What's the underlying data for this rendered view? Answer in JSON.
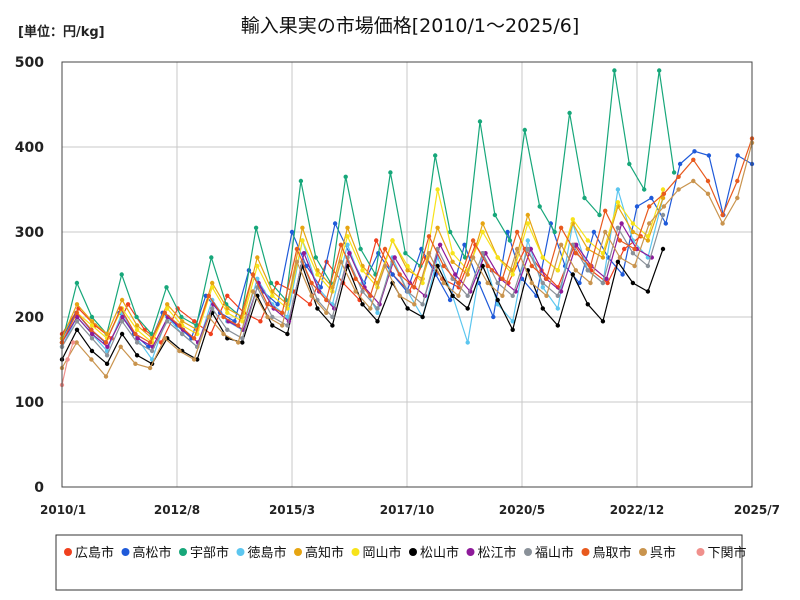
{
  "chart_data": {
    "type": "line",
    "title": "輸入果実の市場価格[2010/1～2025/6]",
    "unit_label": "[単位：円/kg]",
    "xlabel": "",
    "ylabel": "",
    "ylim": [
      0,
      500
    ],
    "y_ticks": [
      "0",
      "100",
      "200",
      "300",
      "400",
      "500"
    ],
    "y_tick_values": [
      0,
      100,
      200,
      300,
      400,
      500
    ],
    "x_range": [
      2010.0,
      2025.5
    ],
    "x_ticks": [
      "2010/1",
      "2012/8",
      "2015/3",
      "2017/10",
      "2020/5",
      "2022/12",
      "2025/7"
    ],
    "x_tick_values": [
      2010.0,
      2012.583,
      2015.167,
      2017.75,
      2020.333,
      2022.917,
      2025.5
    ],
    "grid": true,
    "legend_position": "bottom",
    "series": [
      {
        "name": "広島市",
        "color": "#f0401e",
        "x_start": 2010.0,
        "x_end": 2023.0,
        "values": [
          180,
          210,
          190,
          175,
          215,
          185,
          170,
          210,
          195,
          180,
          225,
          205,
          195,
          240,
          230,
          215,
          265,
          240,
          220,
          290,
          250,
          230,
          270,
          245,
          235,
          285,
          255,
          240,
          280,
          255,
          235,
          285,
          255,
          240,
          280,
          295
        ]
      },
      {
        "name": "高松市",
        "color": "#1f5ad9",
        "x_start": 2010.0,
        "x_end": 2025.5,
        "values": [
          175,
          205,
          185,
          170,
          205,
          180,
          165,
          205,
          190,
          175,
          225,
          205,
          195,
          255,
          230,
          215,
          300,
          260,
          235,
          310,
          275,
          240,
          275,
          250,
          230,
          280,
          250,
          220,
          285,
          240,
          200,
          300,
          245,
          225,
          310,
          260,
          240,
          300,
          270,
          250,
          330,
          340,
          310,
          380,
          395,
          390,
          320,
          390,
          380
        ]
      },
      {
        "name": "宇部市",
        "color": "#17a77a",
        "x_start": 2010.0,
        "x_end": 2023.75,
        "values": [
          170,
          240,
          200,
          180,
          250,
          200,
          180,
          235,
          200,
          190,
          270,
          215,
          200,
          305,
          240,
          220,
          360,
          270,
          240,
          365,
          280,
          250,
          370,
          275,
          260,
          390,
          300,
          270,
          430,
          320,
          290,
          420,
          330,
          300,
          440,
          340,
          320,
          490,
          380,
          350,
          490,
          370
        ]
      },
      {
        "name": "徳島市",
        "color": "#5cc6ef",
        "x_start": 2010.0,
        "x_end": 2023.5,
        "values": [
          165,
          200,
          180,
          160,
          205,
          175,
          150,
          200,
          180,
          165,
          220,
          195,
          185,
          245,
          215,
          200,
          290,
          235,
          215,
          285,
          240,
          205,
          270,
          230,
          200,
          270,
          225,
          170,
          275,
          215,
          195,
          290,
          235,
          210,
          310,
          255,
          240,
          350,
          290,
          270,
          340
        ]
      },
      {
        "name": "高知市",
        "color": "#e6a512",
        "x_start": 2010.0,
        "x_end": 2023.5,
        "values": [
          175,
          215,
          195,
          180,
          220,
          190,
          175,
          215,
          195,
          185,
          240,
          210,
          200,
          270,
          230,
          215,
          305,
          255,
          235,
          305,
          260,
          240,
          290,
          255,
          245,
          305,
          265,
          250,
          310,
          270,
          255,
          320,
          270,
          255,
          310,
          280,
          270,
          330,
          300,
          290,
          340
        ]
      },
      {
        "name": "岡山市",
        "color": "#f7e31a",
        "x_start": 2010.0,
        "x_end": 2023.5,
        "values": [
          170,
          205,
          190,
          175,
          210,
          185,
          170,
          210,
          190,
          180,
          235,
          205,
          195,
          260,
          225,
          210,
          290,
          250,
          230,
          295,
          255,
          235,
          290,
          260,
          240,
          350,
          275,
          255,
          300,
          270,
          250,
          310,
          270,
          255,
          315,
          290,
          275,
          335,
          310,
          295,
          350
        ]
      },
      {
        "name": "松山市",
        "color": "#000000",
        "x_start": 2010.0,
        "x_end": 2023.5,
        "values": [
          150,
          185,
          160,
          145,
          180,
          155,
          145,
          175,
          160,
          150,
          205,
          175,
          170,
          225,
          190,
          180,
          260,
          210,
          190,
          260,
          215,
          195,
          240,
          210,
          200,
          260,
          225,
          210,
          260,
          220,
          185,
          255,
          210,
          190,
          250,
          215,
          195,
          265,
          240,
          230,
          280
        ]
      },
      {
        "name": "松江市",
        "color": "#8e1a9a",
        "x_start": 2010.0,
        "x_end": 2023.25,
        "values": [
          170,
          200,
          180,
          165,
          200,
          175,
          165,
          200,
          185,
          170,
          215,
          195,
          185,
          240,
          210,
          195,
          275,
          230,
          210,
          275,
          235,
          215,
          270,
          240,
          225,
          285,
          250,
          230,
          275,
          245,
          230,
          280,
          245,
          230,
          285,
          260,
          245,
          310,
          280,
          270
        ]
      },
      {
        "name": "福山市",
        "color": "#8a9199",
        "x_start": 2010.0,
        "x_end": 2023.5,
        "values": [
          165,
          195,
          175,
          155,
          195,
          170,
          160,
          195,
          180,
          165,
          210,
          185,
          175,
          235,
          200,
          190,
          265,
          220,
          200,
          270,
          230,
          210,
          265,
          230,
          215,
          280,
          245,
          225,
          275,
          240,
          225,
          280,
          240,
          225,
          285,
          255,
          240,
          305,
          275,
          260,
          320
        ]
      },
      {
        "name": "鳥取市",
        "color": "#e85a1e",
        "x_start": 2010.0,
        "x_end": 2025.5,
        "values": [
          170,
          205,
          185,
          170,
          210,
          180,
          170,
          205,
          190,
          175,
          225,
          200,
          190,
          250,
          215,
          205,
          280,
          240,
          220,
          285,
          245,
          225,
          280,
          250,
          235,
          295,
          260,
          240,
          290,
          260,
          245,
          300,
          260,
          245,
          305,
          275,
          260,
          325,
          290,
          280,
          330,
          345,
          365,
          385,
          360,
          320,
          360,
          410
        ]
      },
      {
        "name": "呉市",
        "color": "#c9944e",
        "x_start": 2010.0,
        "x_end": 2025.5,
        "values": [
          140,
          170,
          150,
          130,
          165,
          145,
          140,
          175,
          160,
          150,
          200,
          180,
          170,
          230,
          200,
          190,
          265,
          225,
          205,
          265,
          230,
          210,
          260,
          225,
          215,
          275,
          240,
          225,
          270,
          240,
          225,
          280,
          240,
          225,
          285,
          255,
          240,
          300,
          270,
          260,
          310,
          330,
          350,
          360,
          345,
          310,
          340,
          405
        ]
      },
      {
        "name": "下関市",
        "color": "#f0908c",
        "x_start": 2010.0,
        "x_end": 2010.25,
        "values": [
          120,
          150,
          170
        ]
      }
    ]
  }
}
